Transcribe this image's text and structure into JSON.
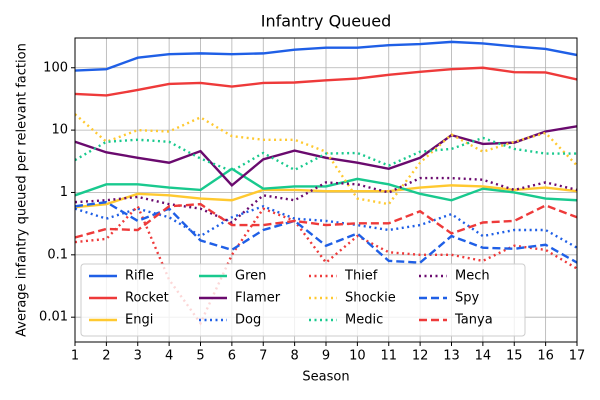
{
  "chart_data": {
    "type": "line",
    "title": "Infantry Queued",
    "xlabel": "Season",
    "ylabel": "Average infantry queued per relevant faction",
    "x": [
      1,
      2,
      3,
      4,
      5,
      6,
      7,
      8,
      9,
      10,
      11,
      12,
      13,
      14,
      15,
      16,
      17
    ],
    "xlim": [
      1,
      17
    ],
    "xticks": [
      1,
      2,
      3,
      4,
      5,
      6,
      7,
      8,
      9,
      10,
      11,
      12,
      13,
      14,
      15,
      16,
      17
    ],
    "ylim": [
      0.004,
      300
    ],
    "yticks": [
      0.01,
      0.1,
      1,
      10,
      100
    ],
    "log_y": true,
    "grid": true,
    "legend": "lower left",
    "series": [
      {
        "name": "Rifle",
        "color": "#1f5fe6",
        "dash": "solid",
        "values": [
          90,
          95,
          145,
          165,
          170,
          165,
          170,
          195,
          210,
          210,
          230,
          240,
          260,
          245,
          220,
          200,
          160
        ]
      },
      {
        "name": "Rocket",
        "color": "#ee3a3a",
        "dash": "solid",
        "values": [
          38,
          36,
          44,
          55,
          57,
          50,
          57,
          58,
          63,
          67,
          77,
          86,
          95,
          100,
          85,
          84,
          65
        ]
      },
      {
        "name": "Engi",
        "color": "#ffc930",
        "dash": "solid",
        "values": [
          0.58,
          0.65,
          0.95,
          0.9,
          0.8,
          0.75,
          1.1,
          1.1,
          1.05,
          1.05,
          1.05,
          1.2,
          1.3,
          1.25,
          1.1,
          1.2,
          1.05
        ]
      },
      {
        "name": "Gren",
        "color": "#19c98e",
        "dash": "solid",
        "values": [
          0.9,
          1.35,
          1.35,
          1.2,
          1.1,
          2.4,
          1.15,
          1.25,
          1.25,
          1.65,
          1.35,
          0.95,
          0.75,
          1.15,
          1.0,
          0.8,
          0.75
        ]
      },
      {
        "name": "Flamer",
        "color": "#6a0a6e",
        "dash": "solid",
        "values": [
          6.5,
          4.4,
          3.6,
          3.0,
          4.6,
          1.3,
          3.4,
          4.7,
          3.6,
          3.0,
          2.4,
          3.6,
          8.3,
          6.0,
          6.3,
          9.5,
          11.5
        ]
      },
      {
        "name": "Dog",
        "color": "#1f5fe6",
        "dash": "dotted",
        "values": [
          0.55,
          0.38,
          0.55,
          0.4,
          0.2,
          0.4,
          0.6,
          0.38,
          0.35,
          0.3,
          0.25,
          0.3,
          0.45,
          0.2,
          0.25,
          0.25,
          0.13
        ]
      },
      {
        "name": "Thief",
        "color": "#ee3a3a",
        "dash": "dotted",
        "values": [
          0.16,
          0.18,
          0.6,
          0.04,
          0.008,
          0.1,
          0.55,
          0.35,
          0.075,
          0.2,
          0.11,
          0.1,
          0.1,
          0.08,
          0.14,
          0.12,
          0.06
        ]
      },
      {
        "name": "Shockie",
        "color": "#ffc930",
        "dash": "dotted",
        "values": [
          18,
          6.5,
          10,
          9.5,
          16,
          8,
          7,
          7,
          4.5,
          0.8,
          0.65,
          3,
          8.5,
          4.5,
          6.5,
          9,
          2.7
        ]
      },
      {
        "name": "Medic",
        "color": "#19c98e",
        "dash": "dotted",
        "values": [
          3.3,
          6.5,
          7,
          6.5,
          3.5,
          2.2,
          4.3,
          2.3,
          4.2,
          4.3,
          2.7,
          4.5,
          5,
          7.5,
          5,
          4.2,
          4.2
        ]
      },
      {
        "name": "Mech",
        "color": "#6a0a6e",
        "dash": "dotted",
        "values": [
          0.7,
          0.75,
          0.85,
          0.65,
          0.55,
          0.33,
          0.9,
          0.75,
          1.45,
          1.35,
          1.0,
          1.7,
          1.7,
          1.6,
          1.1,
          1.45,
          1.1
        ]
      },
      {
        "name": "Spy",
        "color": "#1f5fe6",
        "dash": "dashed",
        "values": [
          0.6,
          0.7,
          0.35,
          0.55,
          0.17,
          0.12,
          0.25,
          0.35,
          0.14,
          0.22,
          0.08,
          0.075,
          0.2,
          0.13,
          0.125,
          0.145,
          0.075
        ]
      },
      {
        "name": "Tanya",
        "color": "#ee3a3a",
        "dash": "dashed",
        "values": [
          0.19,
          0.26,
          0.25,
          0.6,
          0.65,
          0.3,
          0.3,
          0.35,
          0.3,
          0.32,
          0.32,
          0.5,
          0.22,
          0.33,
          0.35,
          0.62,
          0.4
        ]
      }
    ]
  }
}
